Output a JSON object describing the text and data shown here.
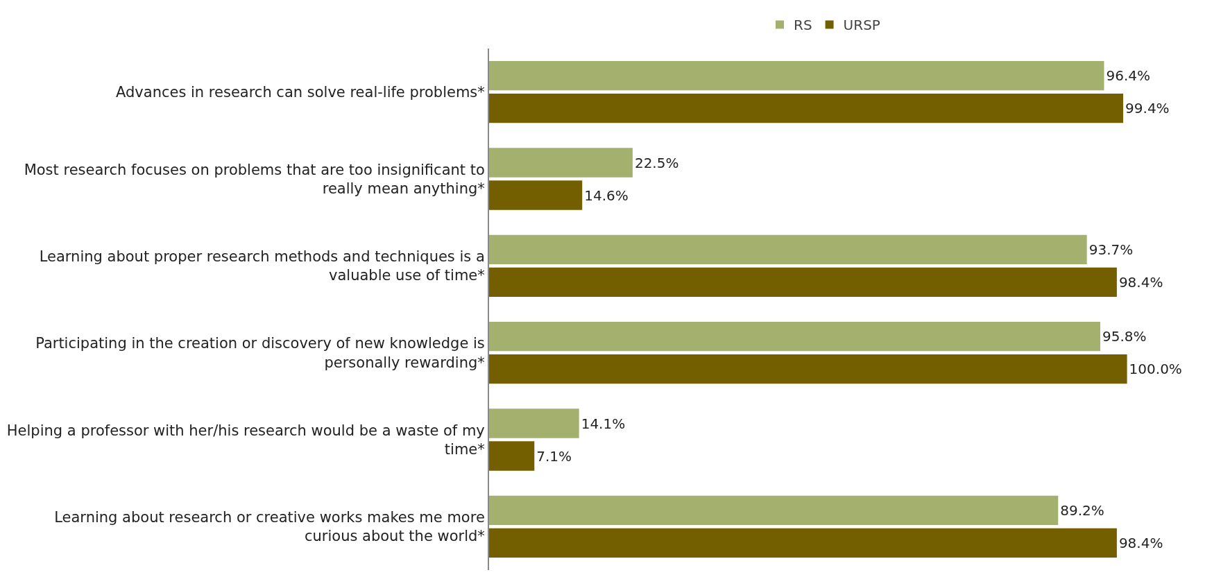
{
  "chart_data": {
    "type": "bar",
    "orientation": "horizontal",
    "categories": [
      "Advances in research can solve real-life problems*",
      "Most research focuses on problems that are too insignificant to\nreally mean anything*",
      "Learning about proper research methods and techniques is a\nvaluable use of time*",
      "Participating in the creation or discovery of new knowledge is\npersonally rewarding*",
      "Helping a professor with her/his research would be a waste of my\ntime*",
      "Learning about research or creative works makes me more\ncurious about the world*"
    ],
    "series": [
      {
        "name": "RS",
        "color": "#a3b06e",
        "values": [
          96.4,
          22.5,
          93.7,
          95.8,
          14.1,
          89.2
        ],
        "value_labels": [
          "96.4%",
          "22.5%",
          "93.7%",
          "95.8%",
          "14.1%",
          "89.2%"
        ]
      },
      {
        "name": "URSP",
        "color": "#735e00",
        "values": [
          99.4,
          14.6,
          98.4,
          100.0,
          7.1,
          98.4
        ],
        "value_labels": [
          "99.4%",
          "14.6%",
          "98.4%",
          "100.0%",
          "7.1%",
          "98.4%"
        ]
      }
    ],
    "tick_labels": "y",
    "legend": "top",
    "grid": false
  }
}
